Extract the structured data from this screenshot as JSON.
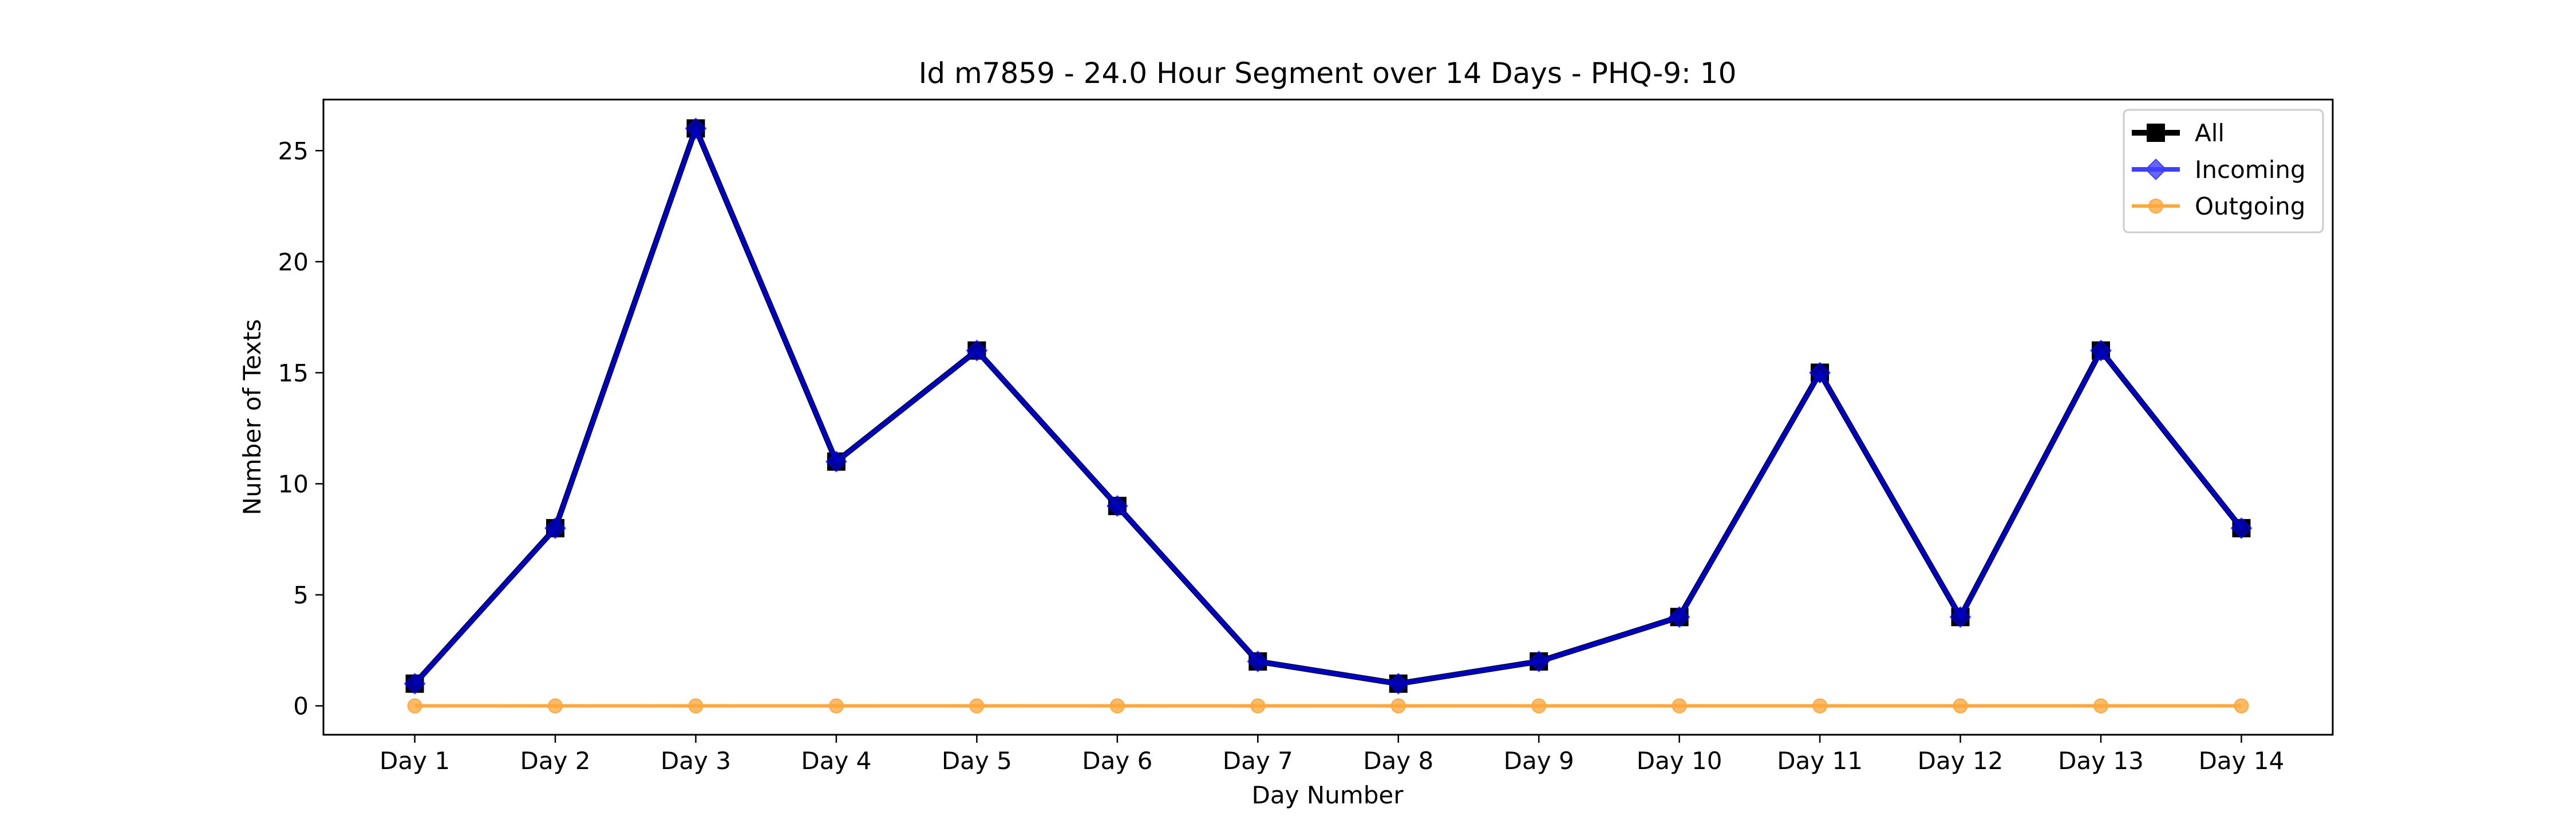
{
  "chart_data": {
    "type": "line",
    "title": "Id m7859 - 24.0 Hour Segment over 14 Days - PHQ-9: 10",
    "xlabel": "Day Number",
    "ylabel": "Number of Texts",
    "categories": [
      "Day 1",
      "Day 2",
      "Day 3",
      "Day 4",
      "Day 5",
      "Day 6",
      "Day 7",
      "Day 8",
      "Day 9",
      "Day 10",
      "Day 11",
      "Day 12",
      "Day 13",
      "Day 14"
    ],
    "ylim": [
      -1.3,
      27.3
    ],
    "yticks": [
      0,
      5,
      10,
      15,
      20,
      25
    ],
    "grid": false,
    "legend_position": "top-right",
    "series": [
      {
        "name": "All",
        "color": "#000000",
        "marker": "square",
        "values": [
          1,
          8,
          26,
          11,
          16,
          9,
          2,
          1,
          2,
          4,
          15,
          4,
          16,
          8
        ]
      },
      {
        "name": "Incoming",
        "color": "#0000ff",
        "marker": "diamond",
        "values": [
          1,
          8,
          26,
          11,
          16,
          9,
          2,
          1,
          2,
          4,
          15,
          4,
          16,
          8
        ]
      },
      {
        "name": "Outgoing",
        "color": "#ff8c00",
        "marker": "circle",
        "values": [
          0,
          0,
          0,
          0,
          0,
          0,
          0,
          0,
          0,
          0,
          0,
          0,
          0,
          0
        ]
      }
    ]
  }
}
